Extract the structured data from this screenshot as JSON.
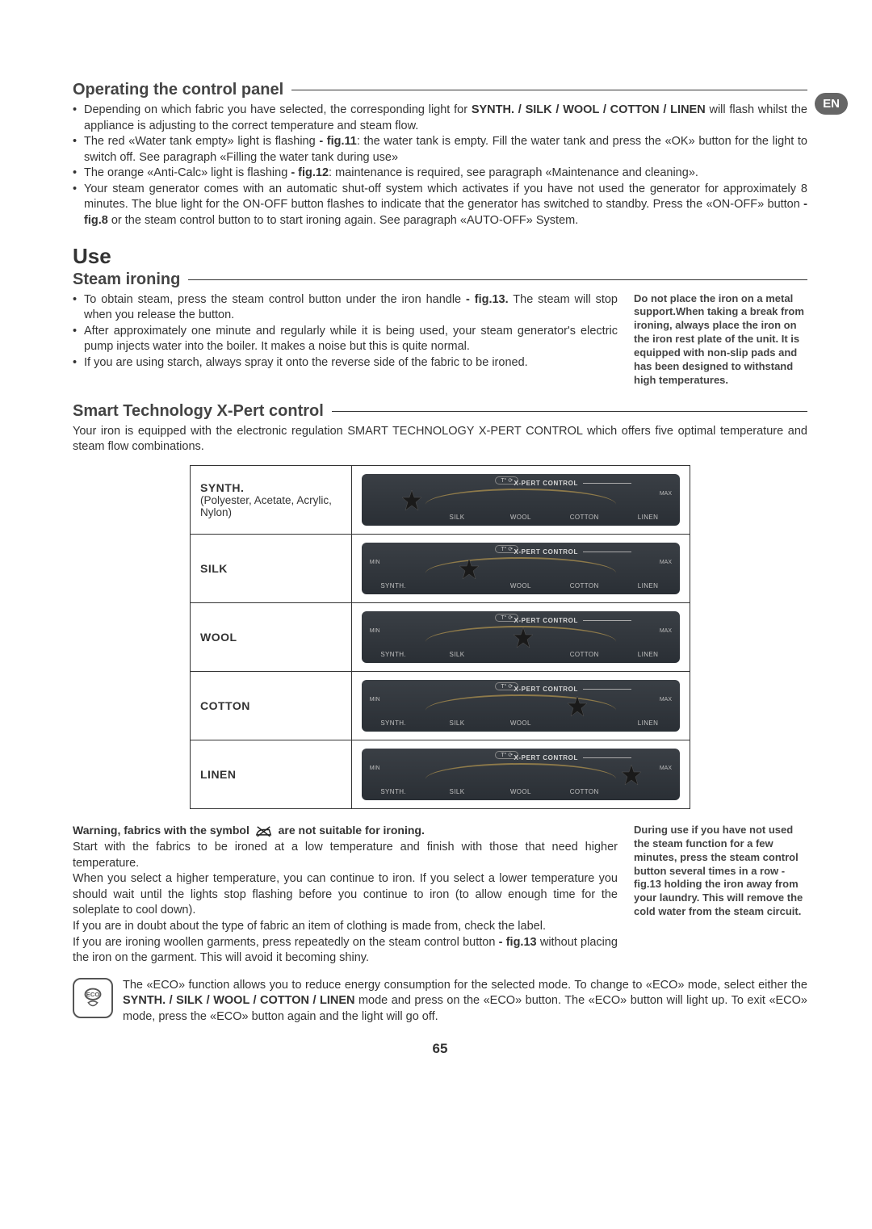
{
  "langBadge": "EN",
  "pageNumber": "65",
  "section1": {
    "heading": "Operating the control panel",
    "bullets": [
      "Depending on which fabric you have selected, the corresponding light for <b>SYNTH. / SILK / WOOL / COTTON / LINEN</b> will flash whilst the appliance is adjusting to the correct temperature and steam flow.",
      "The red «Water tank empty» light is flashing <b>- fig.11</b>: the water tank is empty. Fill the water tank and press the «OK» button for the light to switch off. See paragraph «Filling the water tank during use»",
      "The orange «Anti-Calc» light is flashing <b>- fig.12</b>: maintenance is required, see paragraph «Maintenance and cleaning».",
      "Your steam generator comes with an automatic shut-off system which activates if you have not used the generator for approximately 8 minutes. The blue light for the ON-OFF button flashes to indicate that the generator has switched to standby. Press the «ON-OFF» button <b>- fig.8</b> or the steam control button to to start ironing again. See paragraph «AUTO-OFF» System."
    ]
  },
  "useHeading": "Use",
  "section2": {
    "heading": "Steam ironing",
    "bullets": [
      "To obtain steam, press the steam control button under the iron handle <b>- fig.13.</b> The steam will stop when you release the button.",
      "After approximately one minute and regularly while it is being used, your steam generator's electric pump injects water into the boiler. It makes a noise but this is quite normal.",
      "If you are using starch, always spray it onto the reverse side of the fabric to be ironed."
    ],
    "sideNote": "Do not place the iron on a metal support.When taking a break from ironing, always place the iron on the iron rest plate of the unit. It is equipped with non-slip pads and has been designed to withstand high temperatures."
  },
  "section3": {
    "heading": "Smart Technology X-Pert control",
    "intro": "Your iron is equipped with the electronic regulation SMART TECHNOLOGY X-PERT CONTROL which offers five optimal temperature and steam flow combinations.",
    "dialProductLabel": "X-PERT CONTROL",
    "dialBadge": "T°",
    "dialMax": "MAX",
    "dialMin": "MIN",
    "dialLabels": [
      "SYNTH.",
      "SILK",
      "WOOL",
      "COTTON",
      "LINEN"
    ],
    "rows": [
      {
        "label": "SYNTH.",
        "sub": "(Polyester, Acetate, Acrylic, Nylon)",
        "selectorPos": 0
      },
      {
        "label": "SILK",
        "sub": "",
        "selectorPos": 1
      },
      {
        "label": "WOOL",
        "sub": "",
        "selectorPos": 2
      },
      {
        "label": "COTTON",
        "sub": "",
        "selectorPos": 3
      },
      {
        "label": "LINEN",
        "sub": "",
        "selectorPos": 4
      }
    ],
    "warningLine": "Warning, fabrics with the symbol",
    "warningLine2": "are not suitable for ironing.",
    "body1": "Start with the fabrics to be ironed at a low temperature and finish with those that need higher temperature.",
    "body2": "When you select a higher temperature, you can continue to iron. If you select a lower temperature you should wait until the lights stop flashing before you continue to iron (to allow enough time for the soleplate to cool down).",
    "body3": "If you are in doubt about the type of fabric an item of clothing is made from, check the label.",
    "body4": "If you are ironing woollen garments, press repeatedly on the steam control button <b>- fig.13</b> without placing the iron on the garment. This will avoid it becoming shiny.",
    "sideNote2": "During use if you have not used the steam function for a few minutes, press the steam control button several times in a row - fig.13 holding the iron away from your laundry. This will remove the cold water from the steam circuit.",
    "ecoText": "The «ECO» function allows you to reduce energy consumption for the selected mode. To change to «ECO» mode, select either the <b>SYNTH. / SILK / WOOL / COTTON / LINEN</b> mode and press on the «ECO» button. The «ECO» button will light up.  To exit «ECO» mode, press the «ECO» button again and the light will go off."
  },
  "styling": {
    "selectorPositions": [
      "12%",
      "30%",
      "47%",
      "64%",
      "81%"
    ],
    "dialBg": "#2e3338",
    "pageBg": "#ffffff"
  }
}
